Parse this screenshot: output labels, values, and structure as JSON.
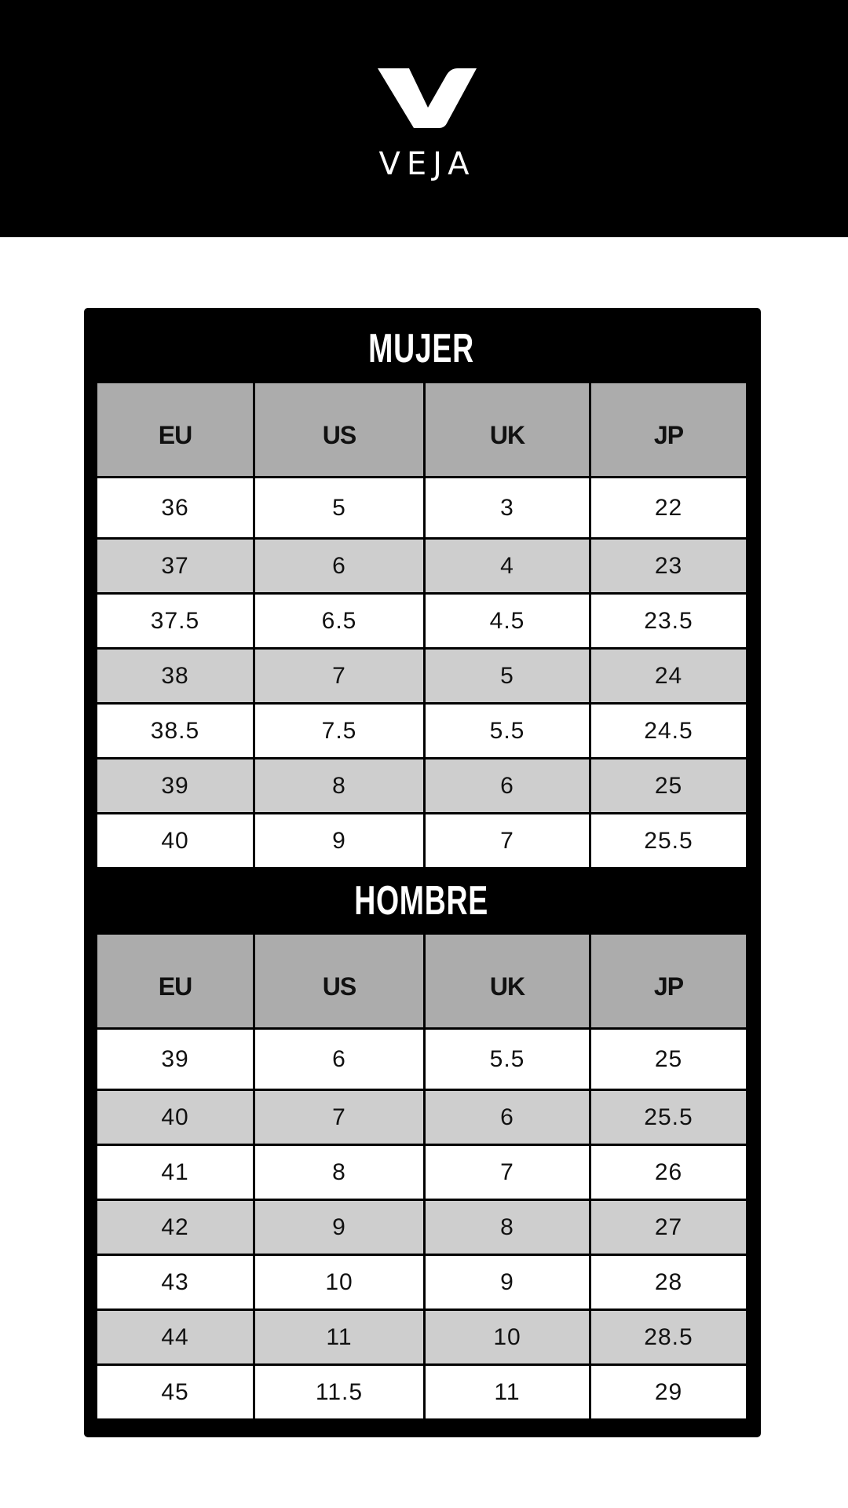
{
  "brand": {
    "name": "VEJA",
    "logo_icon": "veja-v-logo"
  },
  "columns": [
    "EU",
    "US",
    "UK",
    "JP"
  ],
  "sections": [
    {
      "title": "MUJER",
      "rows": [
        [
          "36",
          "5",
          "3",
          "22"
        ],
        [
          "37",
          "6",
          "4",
          "23"
        ],
        [
          "37.5",
          "6.5",
          "4.5",
          "23.5"
        ],
        [
          "38",
          "7",
          "5",
          "24"
        ],
        [
          "38.5",
          "7.5",
          "5.5",
          "24.5"
        ],
        [
          "39",
          "8",
          "6",
          "25"
        ],
        [
          "40",
          "9",
          "7",
          "25.5"
        ]
      ]
    },
    {
      "title": "HOMBRE",
      "rows": [
        [
          "39",
          "6",
          "5.5",
          "25"
        ],
        [
          "40",
          "7",
          "6",
          "25.5"
        ],
        [
          "41",
          "8",
          "7",
          "26"
        ],
        [
          "42",
          "9",
          "8",
          "27"
        ],
        [
          "43",
          "10",
          "9",
          "28"
        ],
        [
          "44",
          "11",
          "10",
          "28.5"
        ],
        [
          "45",
          "11.5",
          "11",
          "29"
        ]
      ]
    }
  ],
  "colors": {
    "header_bg": "#000000",
    "column_header_bg": "#acacac",
    "stripe_bg": "#cecece",
    "row_bg": "#ffffff"
  }
}
